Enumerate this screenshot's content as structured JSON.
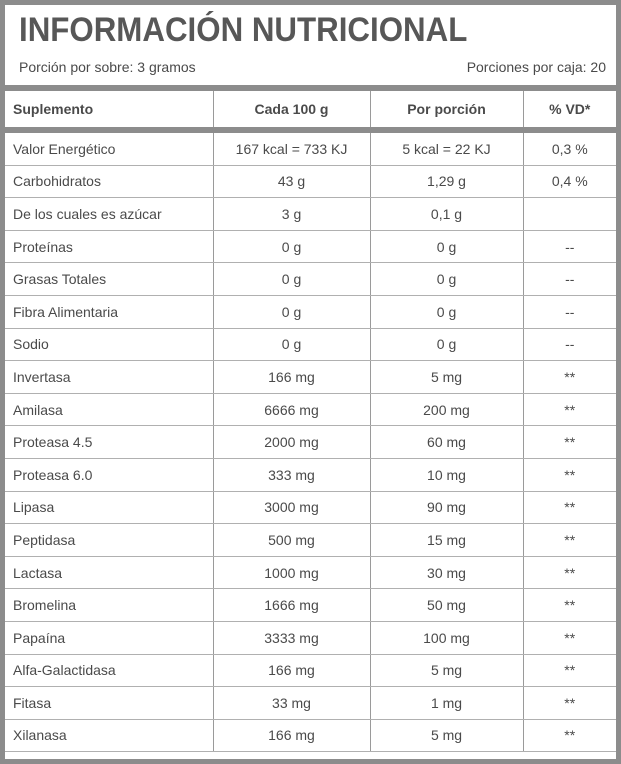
{
  "header": {
    "title": "INFORMACIÓN NUTRICIONAL",
    "serving": "Porción por sobre: 3 gramos",
    "servings_per_box": "Porciones por caja: 20"
  },
  "table": {
    "columns": [
      "Suplemento",
      "Cada 100 g",
      "Por porción",
      "% VD*"
    ],
    "rows": [
      [
        "Valor Energético",
        "167 kcal = 733 KJ",
        "5 kcal = 22 KJ",
        "0,3 %"
      ],
      [
        "Carbohidratos",
        "43 g",
        "1,29 g",
        "0,4 %"
      ],
      [
        "De los cuales es azúcar",
        "3 g",
        "0,1 g"
      ],
      [
        "Proteínas",
        "0 g",
        "0 g",
        "--"
      ],
      [
        "Grasas Totales",
        "0 g",
        "0 g",
        "--"
      ],
      [
        "Fibra Alimentaria",
        "0 g",
        "0 g",
        "--"
      ],
      [
        "Sodio",
        "0 g",
        "0 g",
        "--"
      ],
      [
        "Invertasa",
        "166 mg",
        "5 mg",
        "**"
      ],
      [
        "Amilasa",
        "6666 mg",
        "200 mg",
        "**"
      ],
      [
        "Proteasa 4.5",
        "2000 mg",
        "60 mg",
        "**"
      ],
      [
        "Proteasa 6.0",
        "333 mg",
        "10 mg",
        "**"
      ],
      [
        "Lipasa",
        "3000 mg",
        "90 mg",
        "**"
      ],
      [
        "Peptidasa",
        "500 mg",
        "15 mg",
        "**"
      ],
      [
        "Lactasa",
        "1000 mg",
        "30 mg",
        "**"
      ],
      [
        "Bromelina",
        "1666 mg",
        "50 mg",
        "**"
      ],
      [
        "Papaína",
        "3333 mg",
        "100 mg",
        "**"
      ],
      [
        "Alfa-Galactidasa",
        "166 mg",
        "5 mg",
        "**"
      ],
      [
        "Fitasa",
        "33 mg",
        "1 mg",
        "**"
      ],
      [
        "Xilanasa",
        "166 mg",
        "5 mg",
        "**"
      ]
    ]
  }
}
